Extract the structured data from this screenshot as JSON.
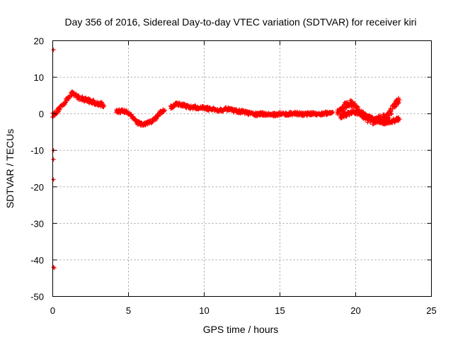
{
  "chart_data": {
    "type": "scatter",
    "title": "Day 356 of 2016, Sidereal Day-to-day VTEC variation (SDTVAR) for receiver kiri",
    "xlabel": "GPS time / hours",
    "ylabel": "SDTVAR / TECUs",
    "xlim": [
      0,
      25
    ],
    "ylim": [
      -50,
      20
    ],
    "xticks": [
      0,
      5,
      10,
      15,
      20,
      25
    ],
    "yticks": [
      -50,
      -40,
      -30,
      -20,
      -10,
      0,
      10,
      20
    ],
    "grid": true,
    "marker": "+",
    "colors": {
      "series": "#ff0000",
      "grid": "#a0a0a0",
      "axis": "#000000"
    },
    "series": [
      {
        "name": "SDTVAR",
        "outliers": [
          [
            0.05,
            17.5
          ],
          [
            0.05,
            -10.0
          ],
          [
            0.05,
            -12.5
          ],
          [
            0.05,
            -18.0
          ],
          [
            0.05,
            -42.0
          ],
          [
            0.1,
            -42.2
          ]
        ],
        "segments": [
          {
            "x": [
              0.0,
              0.2,
              0.4,
              0.6,
              0.8,
              1.0,
              1.2,
              1.4,
              1.6,
              1.8,
              2.0,
              2.3,
              2.6,
              3.0,
              3.4
            ],
            "y": [
              -0.3,
              0.3,
              1.2,
              2.3,
              3.2,
              4.3,
              5.5,
              5.5,
              4.7,
              4.3,
              4.1,
              3.7,
              3.3,
              2.8,
              2.3
            ],
            "band": 1.3
          },
          {
            "x": [
              4.2,
              4.6,
              5.0,
              5.3,
              5.6,
              5.9,
              6.2,
              6.5,
              6.8,
              7.1,
              7.4
            ],
            "y": [
              0.6,
              0.8,
              0.3,
              -1.0,
              -2.4,
              -3.0,
              -2.7,
              -2.2,
              -1.2,
              0.3,
              1.0
            ],
            "band": 1.1
          },
          {
            "x": [
              7.8,
              8.2,
              8.6,
              9.0,
              9.5,
              10.0,
              10.5,
              11.0,
              11.5,
              12.0,
              12.5,
              13.0,
              13.5,
              14.0,
              14.5,
              15.0,
              15.5,
              16.0,
              16.5,
              17.0,
              17.5,
              18.0,
              18.5
            ],
            "y": [
              1.8,
              2.8,
              2.4,
              1.8,
              1.7,
              1.6,
              1.2,
              1.0,
              1.3,
              0.8,
              0.6,
              0.1,
              -0.2,
              0.0,
              -0.3,
              0.0,
              -0.1,
              0.2,
              -0.2,
              0.0,
              -0.1,
              0.1,
              0.5
            ],
            "band": 1.0
          },
          {
            "x": [
              18.8,
              19.1,
              19.4,
              19.7,
              20.0,
              20.4,
              20.8,
              21.2,
              21.6,
              22.0,
              22.3,
              22.6,
              22.9
            ],
            "y": [
              0.3,
              1.2,
              2.6,
              2.7,
              1.6,
              0.0,
              -1.4,
              -2.0,
              -1.4,
              -1.0,
              0.4,
              2.6,
              3.8
            ],
            "band": 2.0
          },
          {
            "x": [
              19.0,
              19.4,
              19.8,
              20.2,
              20.6,
              21.0,
              21.4,
              21.8,
              22.2,
              22.6,
              22.9
            ],
            "y": [
              -0.7,
              -0.2,
              0.5,
              0.3,
              -0.5,
              -1.2,
              -1.8,
              -2.5,
              -2.2,
              -1.8,
              -1.5
            ],
            "band": 1.2
          }
        ]
      }
    ]
  }
}
